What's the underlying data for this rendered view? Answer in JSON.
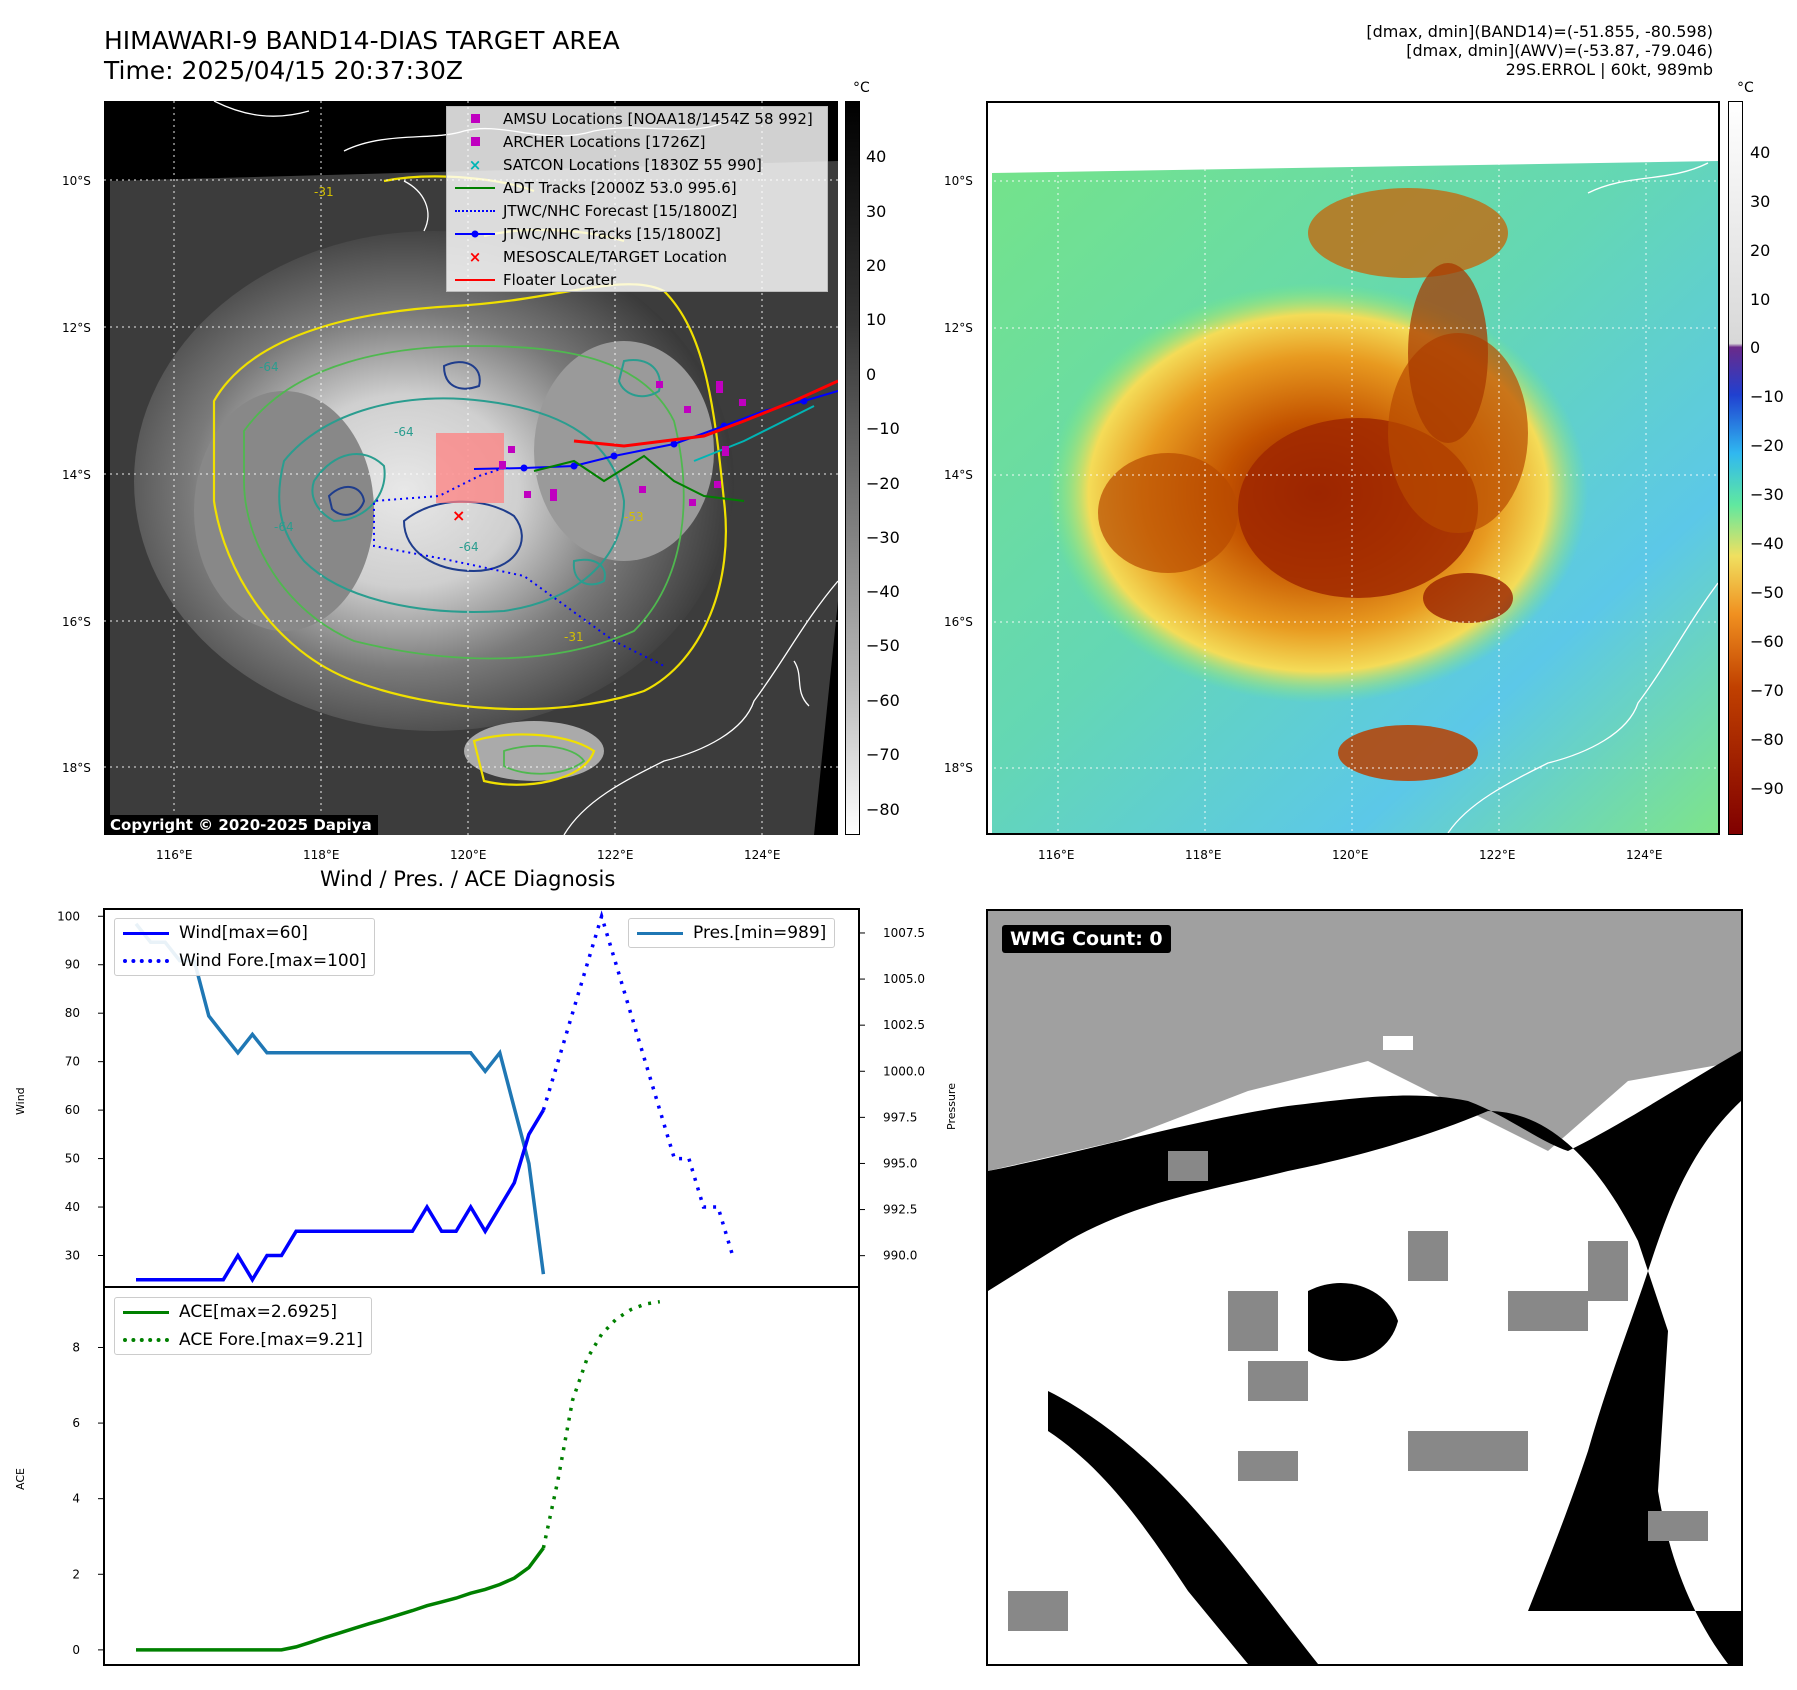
{
  "header": {
    "title_line1": "HIMAWARI-9 BAND14-DIAS TARGET AREA",
    "title_line2": "Time: 2025/04/15 20:37:30Z",
    "info_line1": "[dmax, dmin](BAND14)=(-51.855, -80.598)",
    "info_line2": "[dmax, dmin](AWV)=(-53.87, -79.046)",
    "info_line3": "29S.ERROL | 60kt, 989mb"
  },
  "map_left": {
    "legend": [
      {
        "label": "AMSU Locations [NOAA18/1454Z 58 992]",
        "symbol": "square",
        "color": "#c000c0"
      },
      {
        "label": "ARCHER Locations [1726Z]",
        "symbol": "square",
        "color": "#c000c0"
      },
      {
        "label": "SATCON Locations [1830Z 55 990]",
        "symbol": "x",
        "color": "#00b5b5"
      },
      {
        "label": "ADT Tracks [2000Z 53.0 995.6]",
        "symbol": "line",
        "color": "#008000"
      },
      {
        "label": "JTWC/NHC Forecast [15/1800Z]",
        "symbol": "dotted",
        "color": "#0000ff"
      },
      {
        "label": "JTWC/NHC Tracks [15/1800Z]",
        "symbol": "dotline",
        "color": "#0000ff"
      },
      {
        "label": "MESOSCALE/TARGET Location",
        "symbol": "x",
        "color": "#ff0000"
      },
      {
        "label": "Floater Locater",
        "symbol": "line",
        "color": "#ff0000"
      }
    ],
    "copyright": "Copyright © 2020-2025 Dapiya",
    "colorbar_unit": "°C",
    "colorbar_ticks": [
      "40",
      "30",
      "20",
      "10",
      "0",
      "−10",
      "−20",
      "−30",
      "−40",
      "−50",
      "−60",
      "−70",
      "−80"
    ],
    "lat_labels": [
      "10°S",
      "12°S",
      "14°S",
      "16°S",
      "18°S"
    ],
    "lon_labels": [
      "116°E",
      "118°E",
      "120°E",
      "122°E",
      "124°E"
    ],
    "contour_labels": [
      "-64",
      "-64",
      "-64",
      "-64",
      "-31",
      "-31",
      "-53"
    ]
  },
  "map_right": {
    "colorbar_unit": "°C",
    "colorbar_ticks": [
      "40",
      "30",
      "20",
      "10",
      "0",
      "−10",
      "−20",
      "−30",
      "−40",
      "−50",
      "−60",
      "−70",
      "−80",
      "−90"
    ],
    "lat_labels": [
      "10°S",
      "12°S",
      "14°S",
      "16°S",
      "18°S"
    ],
    "lon_labels": [
      "116°E",
      "118°E",
      "120°E",
      "122°E",
      "124°E"
    ]
  },
  "wmg": {
    "label": "WMG Count: 0"
  },
  "chart_data": [
    {
      "type": "line",
      "title": "Wind / Pres. / ACE Diagnosis",
      "ylabel": "Wind",
      "y2label": "Pressure",
      "ylim": [
        23.5,
        101.5
      ],
      "y2lim": [
        988.3,
        1008.8
      ],
      "yticks": [
        30,
        40,
        50,
        60,
        70,
        80,
        90,
        100
      ],
      "y2ticks": [
        "990.0",
        "992.5",
        "995.0",
        "997.5",
        "1000.0",
        "1002.5",
        "1005.0",
        "1007.5"
      ],
      "series": [
        {
          "name": "Wind[max=60]",
          "axis": "left",
          "style": "solid",
          "color": "#0000ff",
          "values": [
            25,
            25,
            25,
            25,
            25,
            25,
            25,
            30,
            25,
            30,
            30,
            35,
            35,
            35,
            35,
            35,
            35,
            35,
            35,
            35,
            40,
            35,
            35,
            40,
            35,
            40,
            45,
            55,
            60
          ]
        },
        {
          "name": "Wind Fore.[max=100]",
          "axis": "left",
          "style": "dotted",
          "color": "#0000ff",
          "x_start": 28,
          "values": [
            60,
            70,
            80,
            90,
            100,
            90,
            80,
            70,
            60,
            50,
            50,
            40,
            40,
            30
          ]
        },
        {
          "name": "Pres.[min=989]",
          "axis": "right",
          "style": "solid",
          "color": "#1f77b4",
          "values": [
            1008,
            1007,
            1007,
            1006,
            1006,
            1003,
            1002,
            1001,
            1002,
            1001,
            1001,
            1001,
            1001,
            1001,
            1001,
            1001,
            1001,
            1001,
            1001,
            1001,
            1001,
            1001,
            1001,
            1001,
            1000,
            1001,
            998,
            995,
            989
          ]
        }
      ]
    },
    {
      "type": "line",
      "ylabel": "ACE",
      "ylim": [
        -0.4,
        9.6
      ],
      "yticks": [
        0,
        2,
        4,
        6,
        8
      ],
      "series": [
        {
          "name": "ACE[max=2.6925]",
          "style": "solid",
          "color": "#008000",
          "values": [
            0,
            0,
            0,
            0,
            0,
            0,
            0,
            0,
            0,
            0,
            0,
            0.08,
            0.2,
            0.33,
            0.45,
            0.57,
            0.69,
            0.8,
            0.92,
            1.04,
            1.17,
            1.27,
            1.37,
            1.5,
            1.6,
            1.73,
            1.9,
            2.18,
            2.6925
          ]
        },
        {
          "name": "ACE Fore.[max=9.21]",
          "style": "dotted",
          "color": "#008000",
          "x_start": 28,
          "values": [
            2.6925,
            4.5,
            6.6,
            7.7,
            8.35,
            8.75,
            9.0,
            9.15,
            9.21
          ]
        }
      ]
    }
  ]
}
